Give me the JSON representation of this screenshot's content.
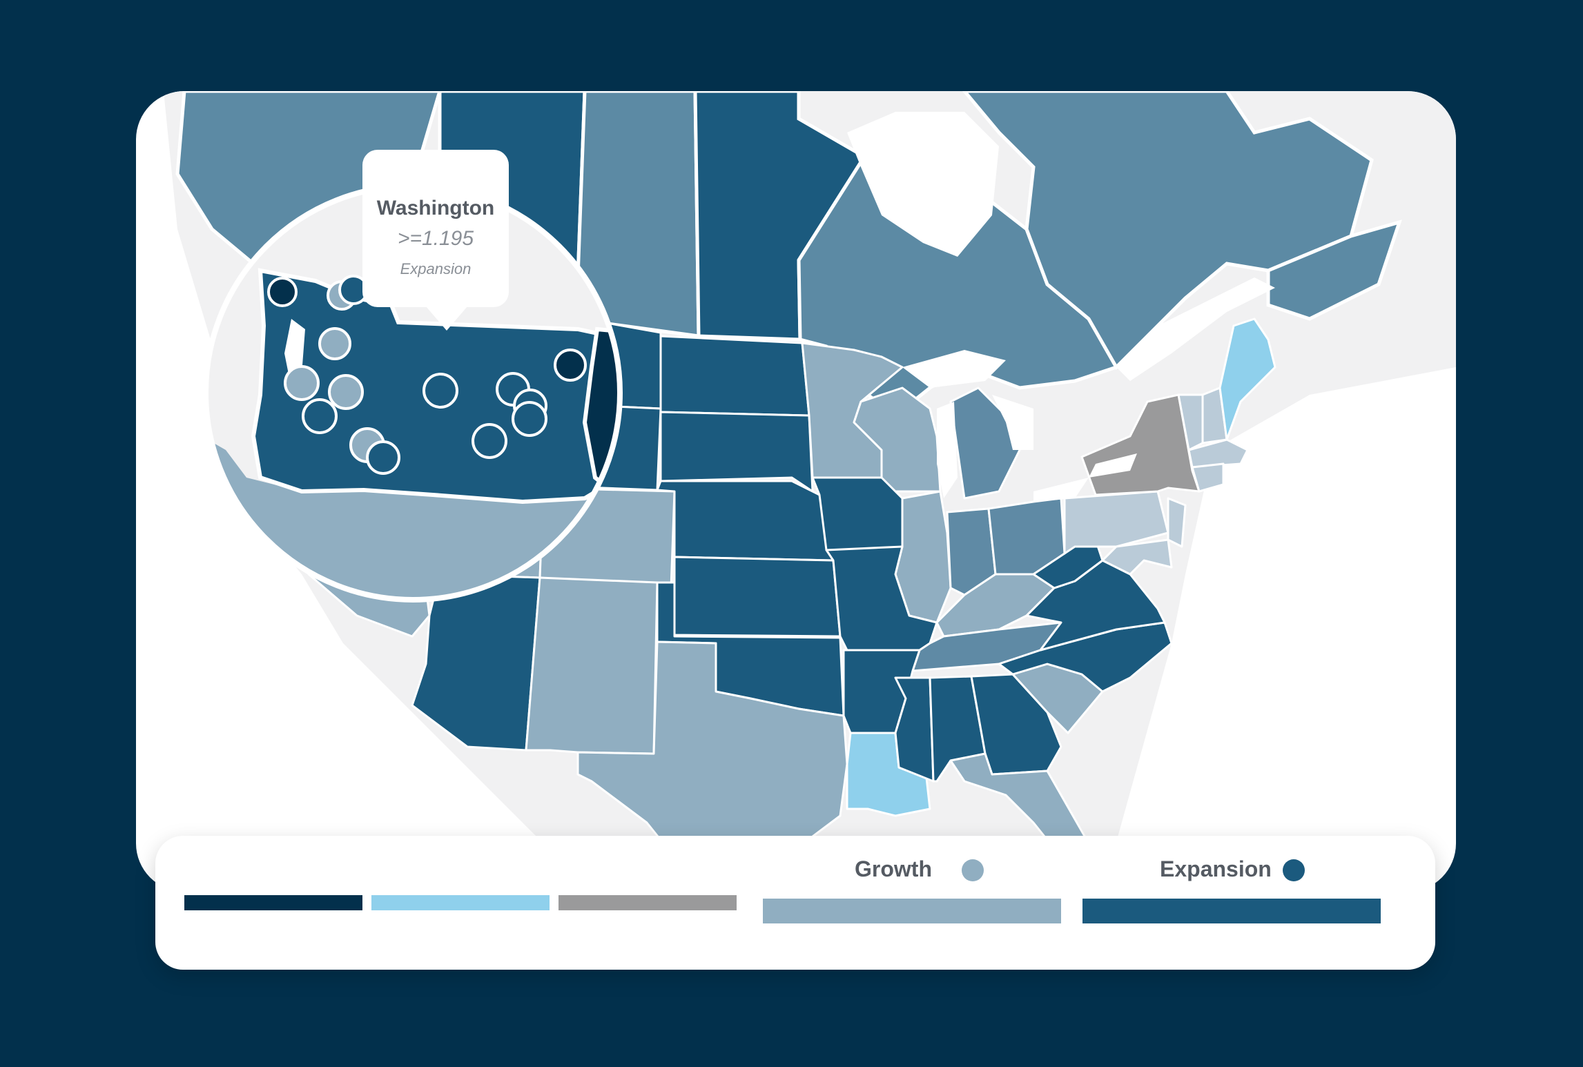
{
  "map": {
    "colors": {
      "background": "#02304c",
      "land_outside": "#f1f1f2",
      "canada": "#5c8aa4",
      "expansion": "#1b5a7e",
      "growth": "#90aec1",
      "light_blue": "#8fd0ec",
      "gray": "#9a9a9b",
      "pale": "#bacbd8",
      "deep": "#03304c",
      "mid": "#5f8aa5"
    },
    "state_categories": {
      "expansion": [
        "Idaho",
        "Montana",
        "Wyoming",
        "North Dakota",
        "South Dakota",
        "Nebraska",
        "Kansas",
        "Oklahoma",
        "Iowa",
        "Missouri",
        "Arkansas",
        "Mississippi",
        "Alabama",
        "Georgia",
        "Virginia",
        "West Virginia",
        "North Carolina",
        "Arizona"
      ],
      "growth": [
        "California",
        "Oregon",
        "Utah",
        "Colorado",
        "New Mexico",
        "Texas",
        "Minnesota",
        "Wisconsin",
        "Illinois",
        "Kentucky",
        "South Carolina",
        "Florida"
      ],
      "mid": [
        "Michigan",
        "Indiana",
        "Ohio",
        "Tennessee"
      ],
      "light_blue": [
        "Louisiana",
        "Maine"
      ],
      "gray": [
        "Nevada",
        "New York"
      ],
      "pale": [
        "Pennsylvania",
        "New Jersey",
        "Vermont",
        "New Hampshire",
        "Massachusetts",
        "Connecticut",
        "Rhode Island",
        "Maryland",
        "Delaware"
      ]
    }
  },
  "tooltip": {
    "title": "Washington",
    "value": ">=1.195",
    "category": "Expansion"
  },
  "legend": {
    "growth_label": "Growth",
    "expansion_label": "Expansion",
    "bar_colors": [
      "#03304c",
      "#8fd0ec",
      "#9a9a9b",
      "#90aec1",
      "#1b5a7e"
    ]
  }
}
